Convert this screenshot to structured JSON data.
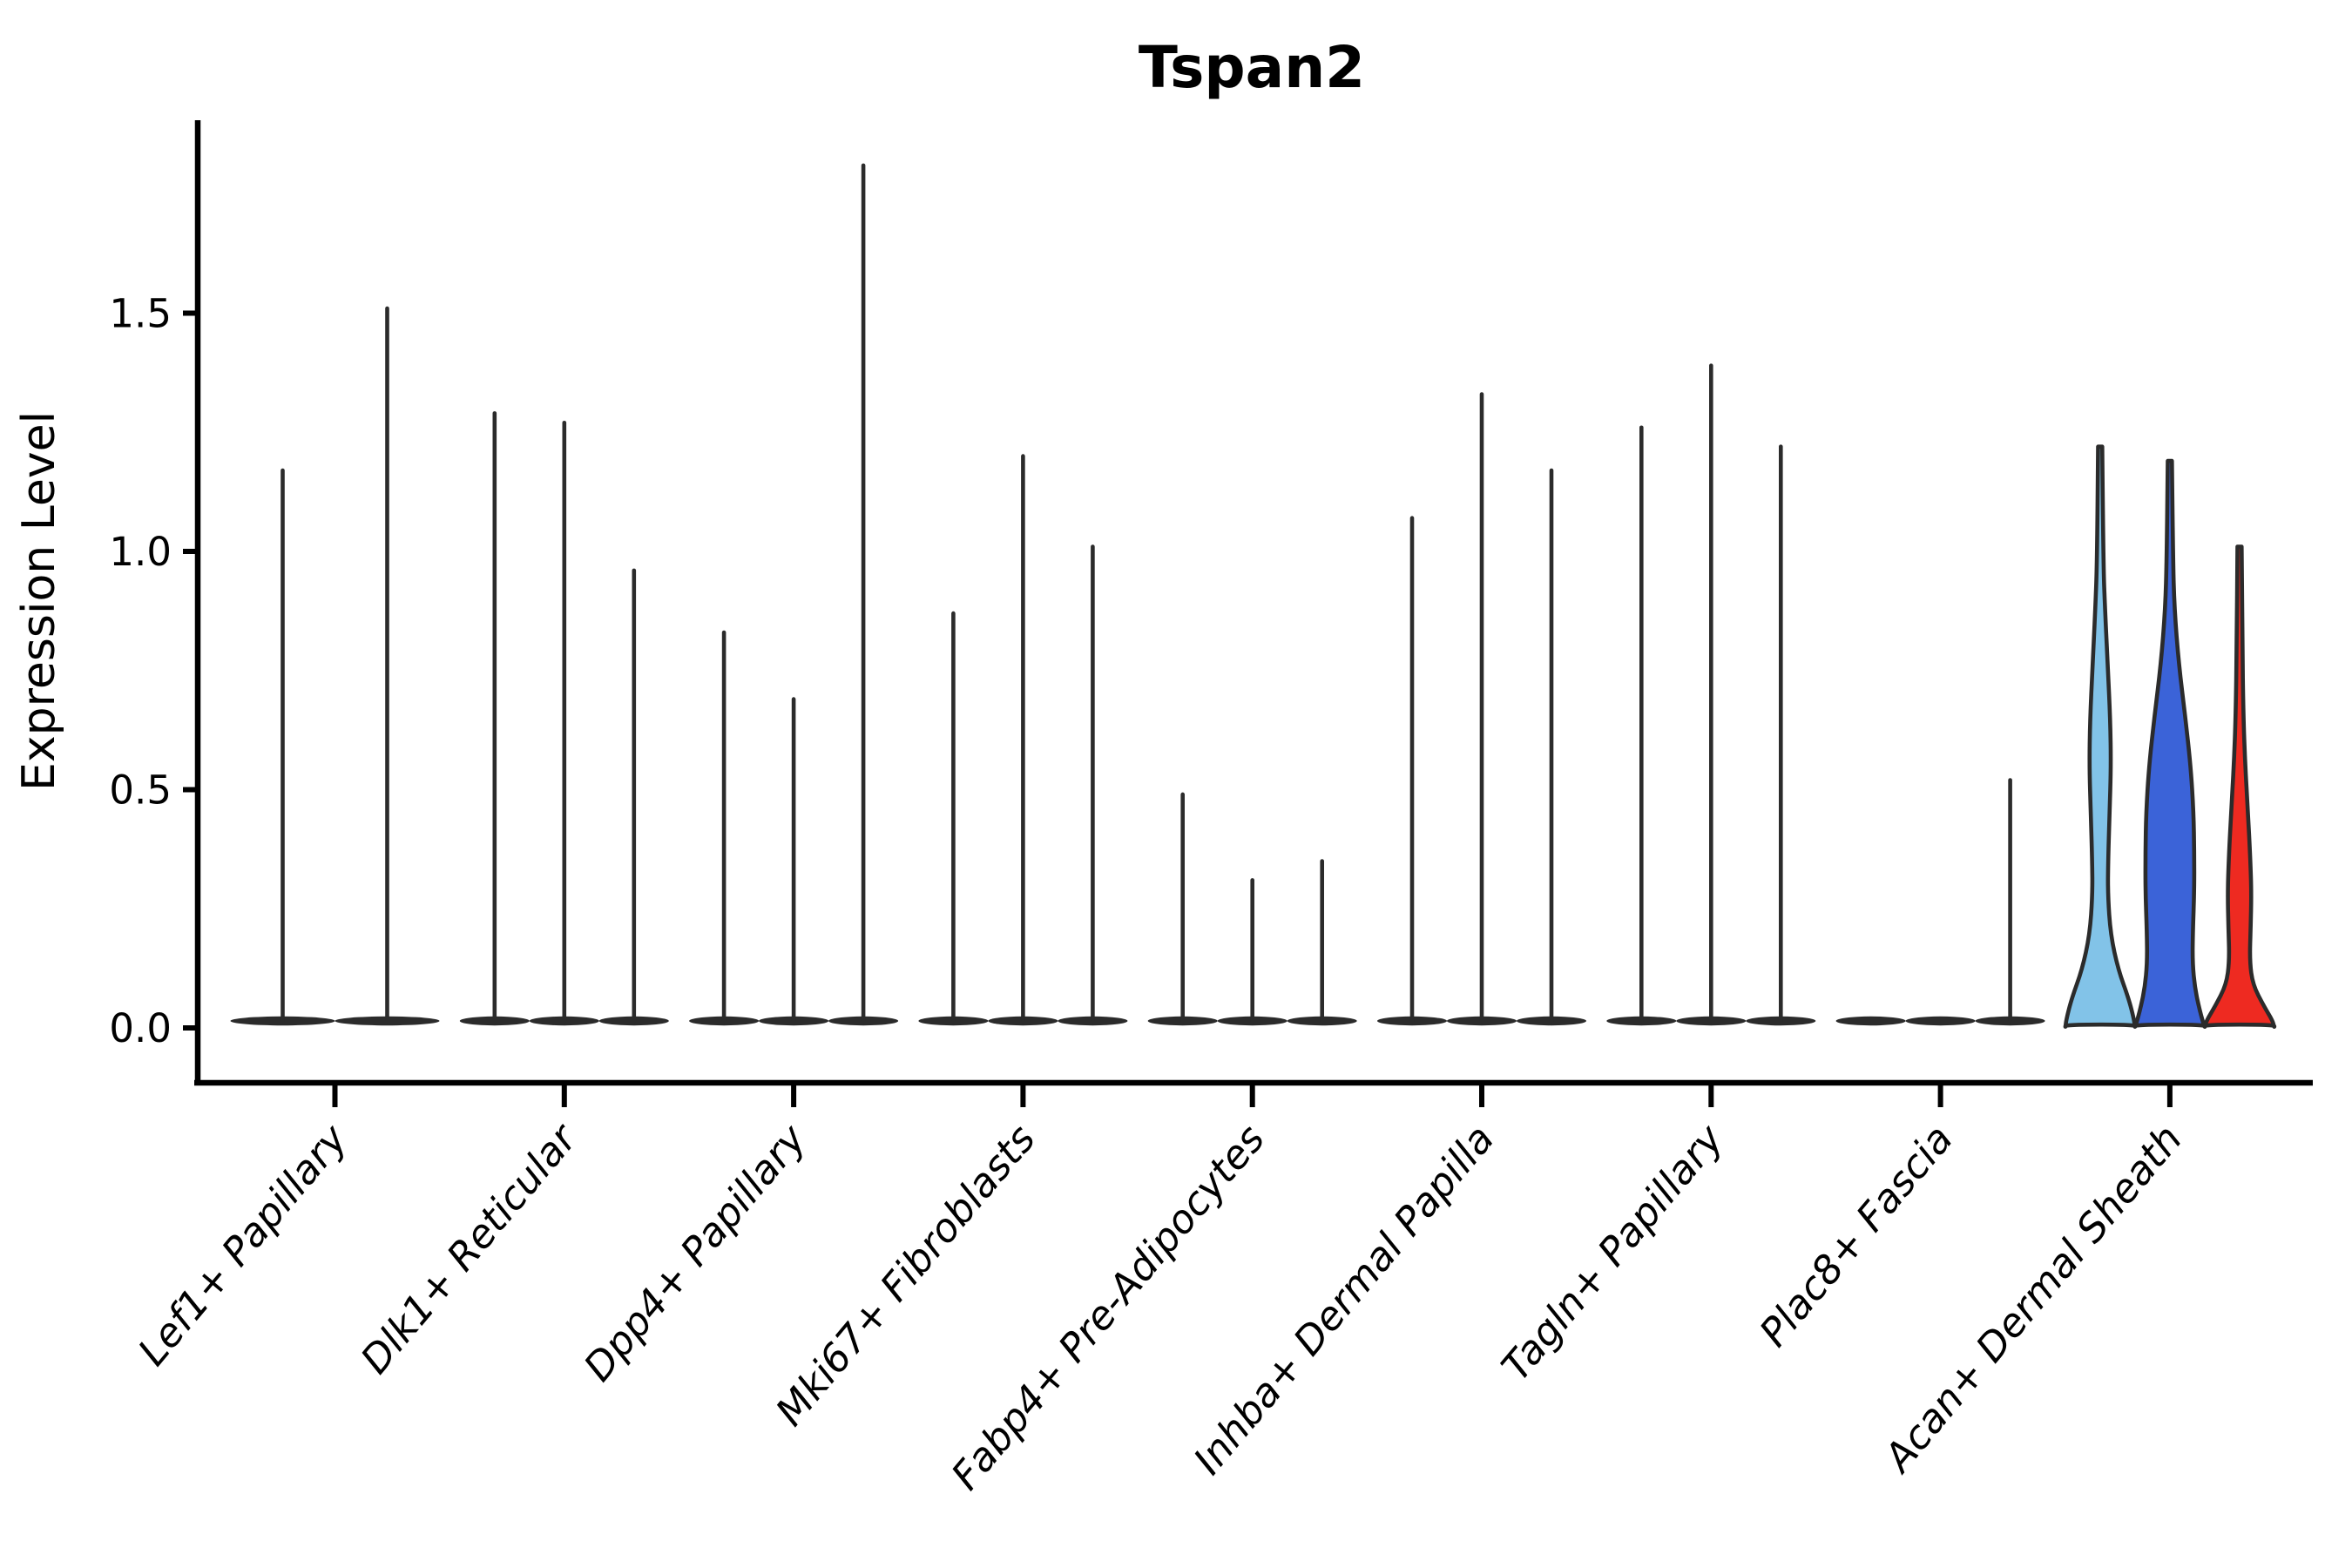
{
  "title": "Tspan2",
  "chart_data": {
    "type": "violin",
    "title": "Tspan2",
    "xlabel": "",
    "ylabel": "Expression Level",
    "ylim": [
      -0.12,
      1.9
    ],
    "yticks": [
      "0.0",
      "0.5",
      "1.0",
      "1.5"
    ],
    "ytick_values": [
      0.0,
      0.5,
      1.0,
      1.5
    ],
    "grid": false,
    "legend_position": "none",
    "outline_color": "#2b2b2b",
    "axis_color": "#000000",
    "categories": [
      "Lef1+ Papillary",
      "Dlk1+ Reticular",
      "Dpp4+ Papillary",
      "Mki67+ Fibroblasts",
      "Fabp4+ Pre-Adipocytes",
      "Inhba+ Dermal Papilla",
      "Tagln+ Papillary",
      "Plac8+ Fascia",
      "Acan+ Dermal Sheath"
    ],
    "groups": [
      {
        "label": "Lef1+ Papillary",
        "violins": [
          {
            "max": 1.17,
            "fill": null
          },
          {
            "max": 1.51,
            "fill": null
          }
        ]
      },
      {
        "label": "Dlk1+ Reticular",
        "violins": [
          {
            "max": 1.29,
            "fill": null
          },
          {
            "max": 1.27,
            "fill": null
          },
          {
            "max": 0.96,
            "fill": null
          }
        ]
      },
      {
        "label": "Dpp4+ Papillary",
        "violins": [
          {
            "max": 0.83,
            "fill": null
          },
          {
            "max": 0.69,
            "fill": null
          },
          {
            "max": 1.81,
            "fill": null
          }
        ]
      },
      {
        "label": "Mki67+ Fibroblasts",
        "violins": [
          {
            "max": 0.87,
            "fill": null
          },
          {
            "max": 1.2,
            "fill": null
          },
          {
            "max": 1.01,
            "fill": null
          }
        ]
      },
      {
        "label": "Fabp4+ Pre-Adipocytes",
        "violins": [
          {
            "max": 0.49,
            "fill": null
          },
          {
            "max": 0.31,
            "fill": null
          },
          {
            "max": 0.35,
            "fill": null
          }
        ]
      },
      {
        "label": "Inhba+ Dermal Papilla",
        "violins": [
          {
            "max": 1.07,
            "fill": null
          },
          {
            "max": 1.33,
            "fill": null
          },
          {
            "max": 1.17,
            "fill": null
          }
        ]
      },
      {
        "label": "Tagln+ Papillary",
        "violins": [
          {
            "max": 1.26,
            "fill": null
          },
          {
            "max": 1.39,
            "fill": null
          },
          {
            "max": 1.22,
            "fill": null
          }
        ]
      },
      {
        "label": "Plac8+ Fascia",
        "violins": [
          {
            "max": 0.0,
            "fill": null
          },
          {
            "max": 0.0,
            "fill": null
          },
          {
            "max": 0.52,
            "fill": null
          }
        ]
      },
      {
        "label": "Acan+ Dermal Sheath",
        "violins": [
          {
            "max": 1.22,
            "fill": "#82C3E8",
            "shape": [
              [
                1.0,
                0.06
              ],
              [
                0.8,
                0.09
              ],
              [
                0.72,
                0.14
              ],
              [
                0.62,
                0.22
              ],
              [
                0.53,
                0.29
              ],
              [
                0.45,
                0.31
              ],
              [
                0.37,
                0.27
              ],
              [
                0.29,
                0.23
              ],
              [
                0.23,
                0.22
              ],
              [
                0.16,
                0.3
              ],
              [
                0.1,
                0.52
              ],
              [
                0.05,
                0.82
              ],
              [
                0.015,
                0.97
              ],
              [
                0.0,
                1.0
              ]
            ]
          },
          {
            "max": 1.19,
            "fill": "#3B63D8",
            "shape": [
              [
                1.0,
                0.06
              ],
              [
                0.83,
                0.09
              ],
              [
                0.74,
                0.13
              ],
              [
                0.64,
                0.26
              ],
              [
                0.55,
                0.44
              ],
              [
                0.46,
                0.6
              ],
              [
                0.38,
                0.68
              ],
              [
                0.31,
                0.7
              ],
              [
                0.24,
                0.7
              ],
              [
                0.17,
                0.66
              ],
              [
                0.115,
                0.65
              ],
              [
                0.07,
                0.72
              ],
              [
                0.03,
                0.86
              ],
              [
                0.0,
                1.0
              ]
            ]
          },
          {
            "max": 1.01,
            "fill": "#EE2A21",
            "shape": [
              [
                1.0,
                0.06
              ],
              [
                0.8,
                0.08
              ],
              [
                0.65,
                0.11
              ],
              [
                0.55,
                0.16
              ],
              [
                0.45,
                0.24
              ],
              [
                0.35,
                0.31
              ],
              [
                0.28,
                0.34
              ],
              [
                0.21,
                0.32
              ],
              [
                0.14,
                0.29
              ],
              [
                0.09,
                0.38
              ],
              [
                0.045,
                0.7
              ],
              [
                0.015,
                0.95
              ],
              [
                0.0,
                1.0
              ]
            ]
          }
        ]
      }
    ]
  }
}
